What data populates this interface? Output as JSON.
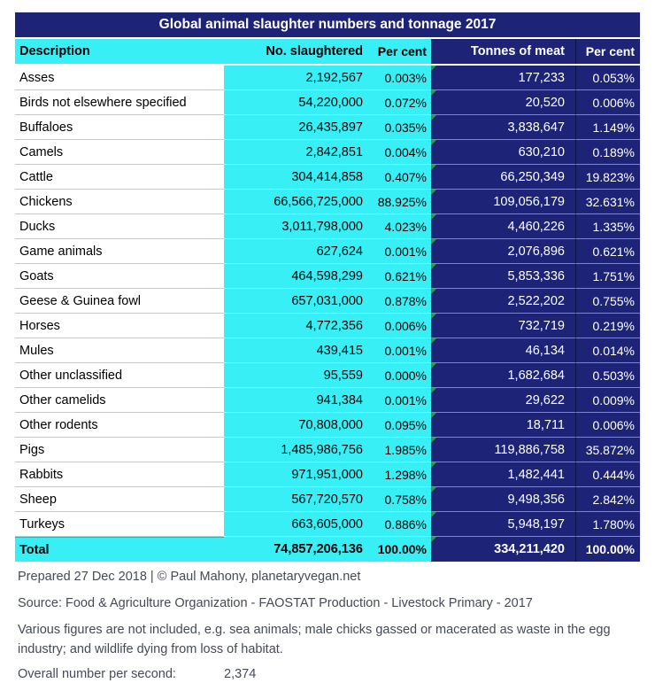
{
  "chart_data": {
    "type": "table",
    "title": "Global animal slaughter numbers and tonnage 2017",
    "columns": [
      "Description",
      "No. slaughtered",
      "Per cent",
      "Tonnes of meat",
      "Per cent"
    ],
    "rows": [
      [
        "Asses",
        "2,192,567",
        "0.003%",
        "177,233",
        "0.053%"
      ],
      [
        "Birds not elsewhere specified",
        "54,220,000",
        "0.072%",
        "20,520",
        "0.006%"
      ],
      [
        "Buffaloes",
        "26,435,897",
        "0.035%",
        "3,838,647",
        "1.149%"
      ],
      [
        "Camels",
        "2,842,851",
        "0.004%",
        "630,210",
        "0.189%"
      ],
      [
        "Cattle",
        "304,414,858",
        "0.407%",
        "66,250,349",
        "19.823%"
      ],
      [
        "Chickens",
        "66,566,725,000",
        "88.925%",
        "109,056,179",
        "32.631%"
      ],
      [
        "Ducks",
        "3,011,798,000",
        "4.023%",
        "4,460,226",
        "1.335%"
      ],
      [
        "Game animals",
        "627,624",
        "0.001%",
        "2,076,896",
        "0.621%"
      ],
      [
        "Goats",
        "464,598,299",
        "0.621%",
        "5,853,336",
        "1.751%"
      ],
      [
        "Geese & Guinea fowl",
        "657,031,000",
        "0.878%",
        "2,522,202",
        "0.755%"
      ],
      [
        "Horses",
        "4,772,356",
        "0.006%",
        "732,719",
        "0.219%"
      ],
      [
        "Mules",
        "439,415",
        "0.001%",
        "46,134",
        "0.014%"
      ],
      [
        "Other unclassified",
        "95,559",
        "0.000%",
        "1,682,684",
        "0.503%"
      ],
      [
        "Other camelids",
        "941,384",
        "0.001%",
        "29,622",
        "0.009%"
      ],
      [
        "Other rodents",
        "70,808,000",
        "0.095%",
        "18,711",
        "0.006%"
      ],
      [
        "Pigs",
        "1,485,986,756",
        "1.985%",
        "119,886,758",
        "35.872%"
      ],
      [
        "Rabbits",
        "971,951,000",
        "1.298%",
        "1,482,441",
        "0.444%"
      ],
      [
        "Sheep",
        "567,720,570",
        "0.758%",
        "9,498,356",
        "2.842%"
      ],
      [
        "Turkeys",
        "663,605,000",
        "0.886%",
        "5,948,197",
        "1.780%"
      ]
    ],
    "total": [
      "Total",
      "74,857,206,136",
      "100.00%",
      "334,211,420",
      "100.00%"
    ],
    "footer": {
      "prepared": "Prepared 27 Dec 2018 | © Paul Mahony, planetaryvegan.net",
      "source": "Source: Food & Agriculture Organization - FAOSTAT Production - Livestock Primary - 2017",
      "note": "Various figures are not included, e.g. sea animals; male chicks gassed or macerated as waste in the egg industry; and wildlife dying from loss of habitat.",
      "rate_label": "Overall number per second:",
      "rate_value": "2,374"
    },
    "layout": {
      "legend": "none",
      "grid": "row separators only"
    },
    "colors": {
      "header_navy": "#1d2478",
      "cell_cyan": "#37eff5",
      "error_marker_green": "#2f9e41",
      "footer_text": "#454a57"
    }
  }
}
